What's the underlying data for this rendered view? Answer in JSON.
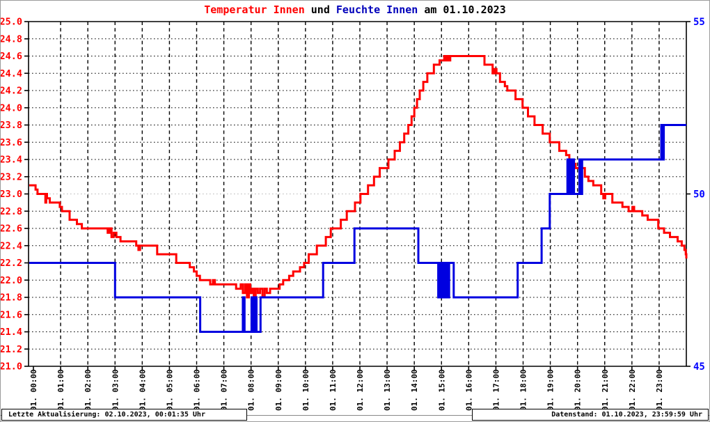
{
  "title": {
    "segments": [
      {
        "text": "Temperatur Innen",
        "color": "#ff0000"
      },
      {
        "text": " und ",
        "color": "#000000"
      },
      {
        "text": "Feuchte Innen",
        "color": "#0000bb"
      },
      {
        "text": " am 01.10.2023",
        "color": "#000000"
      }
    ]
  },
  "footer": {
    "left": "Letzte Aktualisierung: 02.10.2023, 00:01:35 Uhr",
    "right": "Datenstand: 01.10.2023, 23:59:59 Uhr"
  },
  "chart_data": {
    "type": "line",
    "title": "Temperatur Innen und Feuchte Innen am 01.10.2023",
    "x": {
      "unit": "hour",
      "min": 0,
      "max": 24,
      "tick_labels": [
        "01. 00:00",
        "01. 01:00",
        "01. 02:00",
        "01. 03:00",
        "01. 04:00",
        "01. 05:00",
        "01. 06:00",
        "01. 07:00",
        "01. 08:00",
        "01. 09:00",
        "01. 10:00",
        "01. 11:00",
        "01. 12:00",
        "01. 13:00",
        "01. 14:00",
        "01. 15:00",
        "01. 16:00",
        "01. 17:00",
        "01. 18:00",
        "01. 19:00",
        "01. 20:00",
        "01. 21:00",
        "01. 22:00",
        "01. 23:00"
      ]
    },
    "y_left": {
      "name": "Temperatur Innen",
      "min": 21.0,
      "max": 25.0,
      "tick_step": 0.2,
      "tick_labels": [
        "25.0",
        "24.8",
        "24.6",
        "24.4",
        "24.2",
        "24.0",
        "23.8",
        "23.6",
        "23.4",
        "23.2",
        "23.0",
        "22.8",
        "22.6",
        "22.4",
        "22.2",
        "22.0",
        "21.8",
        "21.6",
        "21.4",
        "21.2",
        "21.0"
      ],
      "color": "#ff0000"
    },
    "y_right": {
      "name": "Feuchte Innen",
      "min": 45,
      "max": 55,
      "tick_values": [
        55,
        50,
        45
      ],
      "tick_labels": [
        "55",
        "50",
        "45"
      ],
      "color": "#0000ff"
    },
    "grid": {
      "horizontal_style": "dotted",
      "vertical_style": "dashed",
      "color": "#000000",
      "highlight_left_value": 23.0,
      "highlight_color": "#b8b8b8"
    },
    "legend_position": "none",
    "series": [
      {
        "name": "Temperatur Innen",
        "axis": "left",
        "color": "#ff0000",
        "line_width": 3,
        "step_points": [
          [
            0.0,
            23.1
          ],
          [
            0.08,
            23.05
          ],
          [
            0.15,
            23.0
          ],
          [
            0.44,
            22.9
          ],
          [
            0.47,
            23.0
          ],
          [
            0.5,
            22.95
          ],
          [
            0.6,
            22.9
          ],
          [
            0.97,
            22.85
          ],
          [
            1.05,
            22.8
          ],
          [
            1.33,
            22.7
          ],
          [
            1.6,
            22.65
          ],
          [
            1.78,
            22.6
          ],
          [
            2.73,
            22.55
          ],
          [
            2.8,
            22.6
          ],
          [
            2.87,
            22.5
          ],
          [
            2.95,
            22.55
          ],
          [
            3.05,
            22.5
          ],
          [
            3.2,
            22.45
          ],
          [
            3.78,
            22.4
          ],
          [
            3.86,
            22.35
          ],
          [
            3.92,
            22.4
          ],
          [
            4.55,
            22.3
          ],
          [
            5.25,
            22.2
          ],
          [
            5.75,
            22.15
          ],
          [
            5.9,
            22.1
          ],
          [
            6.0,
            22.05
          ],
          [
            6.12,
            22.0
          ],
          [
            6.5,
            21.95
          ],
          [
            6.6,
            22.0
          ],
          [
            6.67,
            21.95
          ],
          [
            7.45,
            21.9
          ],
          [
            7.62,
            21.95
          ],
          [
            7.7,
            21.85
          ],
          [
            7.78,
            21.95
          ],
          [
            7.85,
            21.8
          ],
          [
            7.92,
            21.95
          ],
          [
            7.97,
            21.85
          ],
          [
            8.03,
            21.9
          ],
          [
            8.1,
            21.8
          ],
          [
            8.17,
            21.9
          ],
          [
            8.25,
            21.85
          ],
          [
            8.33,
            21.9
          ],
          [
            8.42,
            21.8
          ],
          [
            8.5,
            21.9
          ],
          [
            8.58,
            21.85
          ],
          [
            8.7,
            21.9
          ],
          [
            9.05,
            21.95
          ],
          [
            9.18,
            22.0
          ],
          [
            9.4,
            22.05
          ],
          [
            9.55,
            22.1
          ],
          [
            9.8,
            22.15
          ],
          [
            9.95,
            22.2
          ],
          [
            10.12,
            22.3
          ],
          [
            10.42,
            22.4
          ],
          [
            10.75,
            22.5
          ],
          [
            10.93,
            22.6
          ],
          [
            11.3,
            22.7
          ],
          [
            11.52,
            22.8
          ],
          [
            11.82,
            22.9
          ],
          [
            12.02,
            23.0
          ],
          [
            12.3,
            23.1
          ],
          [
            12.52,
            23.2
          ],
          [
            12.73,
            23.3
          ],
          [
            13.05,
            23.4
          ],
          [
            13.28,
            23.5
          ],
          [
            13.47,
            23.6
          ],
          [
            13.63,
            23.7
          ],
          [
            13.78,
            23.8
          ],
          [
            13.9,
            23.9
          ],
          [
            14.0,
            24.0
          ],
          [
            14.1,
            24.1
          ],
          [
            14.2,
            24.2
          ],
          [
            14.33,
            24.3
          ],
          [
            14.48,
            24.4
          ],
          [
            14.72,
            24.5
          ],
          [
            14.93,
            24.55
          ],
          [
            15.1,
            24.6
          ],
          [
            15.15,
            24.55
          ],
          [
            15.2,
            24.6
          ],
          [
            15.25,
            24.55
          ],
          [
            15.32,
            24.6
          ],
          [
            16.58,
            24.5
          ],
          [
            16.88,
            24.4
          ],
          [
            16.95,
            24.45
          ],
          [
            17.02,
            24.4
          ],
          [
            17.15,
            24.3
          ],
          [
            17.33,
            24.25
          ],
          [
            17.42,
            24.2
          ],
          [
            17.72,
            24.1
          ],
          [
            17.98,
            24.0
          ],
          [
            18.18,
            23.9
          ],
          [
            18.42,
            23.8
          ],
          [
            18.72,
            23.7
          ],
          [
            18.98,
            23.6
          ],
          [
            19.33,
            23.5
          ],
          [
            19.58,
            23.45
          ],
          [
            19.7,
            23.4
          ],
          [
            19.78,
            23.35
          ],
          [
            19.93,
            23.3
          ],
          [
            20.27,
            23.2
          ],
          [
            20.4,
            23.15
          ],
          [
            20.58,
            23.1
          ],
          [
            20.87,
            23.0
          ],
          [
            20.95,
            22.95
          ],
          [
            21.02,
            23.0
          ],
          [
            21.28,
            22.9
          ],
          [
            21.65,
            22.85
          ],
          [
            21.88,
            22.8
          ],
          [
            22.02,
            22.85
          ],
          [
            22.08,
            22.8
          ],
          [
            22.38,
            22.75
          ],
          [
            22.58,
            22.7
          ],
          [
            22.97,
            22.6
          ],
          [
            23.18,
            22.55
          ],
          [
            23.4,
            22.5
          ],
          [
            23.68,
            22.45
          ],
          [
            23.83,
            22.4
          ],
          [
            23.93,
            22.35
          ],
          [
            23.98,
            22.3
          ],
          [
            24.0,
            22.25
          ]
        ]
      },
      {
        "name": "Feuchte Innen",
        "axis": "right",
        "color": "#0000e0",
        "line_width": 3,
        "step_points": [
          [
            0.0,
            48
          ],
          [
            3.0,
            47
          ],
          [
            6.13,
            46
          ],
          [
            7.7,
            47
          ],
          [
            7.76,
            46
          ],
          [
            8.02,
            47
          ],
          [
            8.08,
            46
          ],
          [
            8.14,
            47
          ],
          [
            8.2,
            46
          ],
          [
            8.35,
            47
          ],
          [
            10.65,
            48
          ],
          [
            11.8,
            49
          ],
          [
            14.15,
            48
          ],
          [
            14.88,
            47
          ],
          [
            14.93,
            48
          ],
          [
            14.98,
            47
          ],
          [
            15.04,
            48
          ],
          [
            15.1,
            47
          ],
          [
            15.16,
            48
          ],
          [
            15.22,
            47
          ],
          [
            15.28,
            48
          ],
          [
            15.45,
            47
          ],
          [
            17.8,
            48
          ],
          [
            18.68,
            49
          ],
          [
            18.98,
            50
          ],
          [
            19.63,
            51
          ],
          [
            19.68,
            50
          ],
          [
            19.72,
            51
          ],
          [
            19.77,
            50
          ],
          [
            19.82,
            51
          ],
          [
            19.87,
            50
          ],
          [
            20.07,
            51
          ],
          [
            20.12,
            50
          ],
          [
            20.17,
            51
          ],
          [
            23.08,
            52
          ],
          [
            23.13,
            51
          ],
          [
            23.17,
            52
          ],
          [
            24.0,
            52
          ]
        ]
      }
    ]
  }
}
